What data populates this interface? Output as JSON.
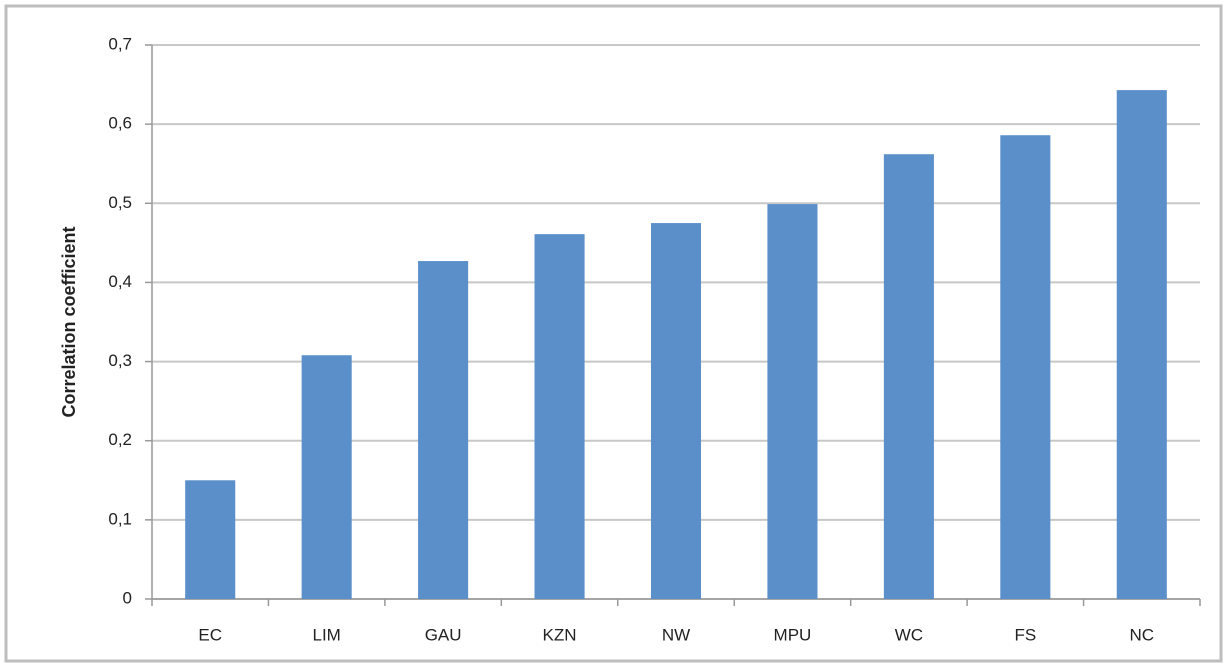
{
  "chart_data": {
    "type": "bar",
    "y_label": "Correlation coefficient",
    "categories": [
      "EC",
      "LIM",
      "GAU",
      "KZN",
      "NW",
      "MPU",
      "WC",
      "FS",
      "NC"
    ],
    "values": [
      0.15,
      0.308,
      0.427,
      0.461,
      0.475,
      0.499,
      0.562,
      0.586,
      0.643
    ],
    "color": "#5b8fca",
    "ylim": [
      0,
      0.7
    ],
    "yticks": [
      0,
      {
        "value": 0.1,
        "label": "0,1"
      },
      {
        "value": 0.2,
        "label": "0,2"
      },
      {
        "value": 0.3,
        "label": "0,3"
      },
      {
        "value": 0.4,
        "label": "0,4"
      },
      {
        "value": 0.5,
        "label": "0,5"
      },
      {
        "value": 0.6,
        "label": "0,6"
      },
      {
        "value": 0.7,
        "label": "0,7"
      }
    ],
    "grid": true
  }
}
